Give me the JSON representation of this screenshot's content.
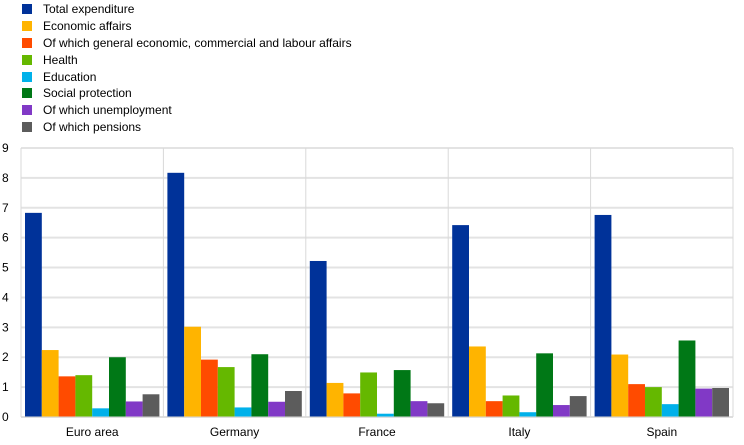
{
  "chart_data": {
    "type": "bar",
    "title": "",
    "xlabel": "",
    "ylabel": "",
    "ylim": [
      0,
      9
    ],
    "yticks": [
      0,
      1,
      2,
      3,
      4,
      5,
      6,
      7,
      8,
      9
    ],
    "grid": true,
    "legend_position": "top-left",
    "categories": [
      "Euro area",
      "Germany",
      "France",
      "Italy",
      "Spain"
    ],
    "series": [
      {
        "name": "Total expenditure",
        "color": "#003299",
        "values": [
          6.83,
          8.17,
          5.22,
          6.42,
          6.76
        ]
      },
      {
        "name": "Economic affairs",
        "color": "#FFB400",
        "values": [
          2.24,
          3.02,
          1.14,
          2.36,
          2.09
        ]
      },
      {
        "name": "Of which general economic, commercial and labour affairs",
        "color": "#FF4B00",
        "values": [
          1.36,
          1.92,
          0.79,
          0.53,
          1.1
        ]
      },
      {
        "name": "Health",
        "color": "#65B800",
        "values": [
          1.4,
          1.67,
          1.49,
          0.72,
          1.0
        ]
      },
      {
        "name": "Education",
        "color": "#00B1EA",
        "values": [
          0.29,
          0.32,
          0.11,
          0.16,
          0.43
        ]
      },
      {
        "name": "Social protection",
        "color": "#007816",
        "values": [
          2.0,
          2.1,
          1.57,
          2.13,
          2.56
        ]
      },
      {
        "name": "Of which unemployment",
        "color": "#8139C6",
        "values": [
          0.52,
          0.51,
          0.53,
          0.4,
          0.95
        ]
      },
      {
        "name": "Of which pensions",
        "color": "#5C5C5C",
        "values": [
          0.76,
          0.87,
          0.46,
          0.7,
          0.97
        ]
      }
    ]
  }
}
